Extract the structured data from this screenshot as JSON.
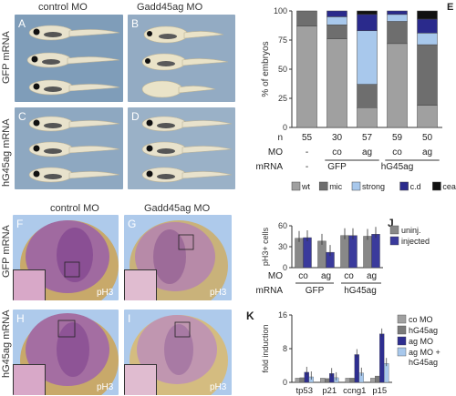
{
  "panel_letters": {
    "A": "A",
    "B": "B",
    "C": "C",
    "D": "D",
    "E": "E",
    "F": "F",
    "G": "G",
    "H": "H",
    "I": "I",
    "J": "J",
    "K": "K"
  },
  "top_images": {
    "col_left": "control MO",
    "col_right": "Gadd45ag MO",
    "row_top": "GFP mRNA",
    "row_bottom": "hG45ag mRNA"
  },
  "bottom_images": {
    "col_left": "control MO",
    "col_right": "Gadd45ag MO",
    "row_top": "GFP mRNA",
    "row_bottom": "hG45ag mRNA",
    "stain": "pH3"
  },
  "colors": {
    "wt": "#a0a0a0",
    "mic": "#6e6e6e",
    "strong": "#a8c8ec",
    "cd": "#2a2a8c",
    "ceac": "#111111",
    "uninj": "#888888",
    "injected": "#3a3a9c",
    "coMO": "#a0a0a0",
    "hG45ag": "#7a7a7a",
    "agMO": "#2e2e90",
    "agMO_hG45ag": "#a8c8ec"
  },
  "chart_data": [
    {
      "panel": "E",
      "type": "bar",
      "stacked": true,
      "ylabel": "% of embryos",
      "ylim": [
        0,
        100
      ],
      "yticks": [
        "0",
        "25",
        "50",
        "75",
        "100"
      ],
      "n_label": "n",
      "n": [
        "55",
        "30",
        "57",
        "59",
        "50"
      ],
      "mo_label": "MO",
      "mo": [
        "-",
        "co",
        "ag",
        "co",
        "ag"
      ],
      "mrna_label": "mRNA",
      "mrna_groups": [
        "-",
        "GFP",
        "hG45ag"
      ],
      "series": [
        {
          "name": "wt",
          "values": [
            87,
            76,
            17,
            72,
            19
          ]
        },
        {
          "name": "mic",
          "values": [
            13,
            12,
            20,
            19,
            52
          ]
        },
        {
          "name": "strong",
          "values": [
            0,
            7,
            46,
            6,
            10
          ]
        },
        {
          "name": "c.d",
          "values": [
            0,
            5,
            14,
            3,
            12
          ]
        },
        {
          "name": "ceac",
          "values": [
            0,
            0,
            3,
            0,
            7
          ]
        }
      ],
      "legend": [
        "wt",
        "mic",
        "strong",
        "c.d",
        "ceac"
      ]
    },
    {
      "panel": "J",
      "type": "bar",
      "ylabel": "pH3+ cells",
      "ylim": [
        0,
        60
      ],
      "yticks": [
        "0",
        "30",
        "60"
      ],
      "mo_label": "MO",
      "mo": [
        "co",
        "ag",
        "co",
        "ag"
      ],
      "mrna_label": "mRNA",
      "mrna_groups": [
        "GFP",
        "hG45ag"
      ],
      "series": [
        {
          "name": "uninj.",
          "values": [
            42,
            38,
            46,
            45
          ]
        },
        {
          "name": "injected",
          "values": [
            43,
            22,
            46,
            48
          ]
        }
      ]
    },
    {
      "panel": "K",
      "type": "bar",
      "ylabel": "fold induction",
      "ylim": [
        0,
        16
      ],
      "yticks": [
        "0",
        "8",
        "16"
      ],
      "categories": [
        "tp53",
        "p21",
        "ccng1",
        "p15"
      ],
      "series": [
        {
          "name": "co MO",
          "values": [
            1,
            1,
            1,
            1
          ]
        },
        {
          "name": "hG45ag",
          "values": [
            1.1,
            0.9,
            1.0,
            1.5
          ]
        },
        {
          "name": "ag MO",
          "values": [
            2.4,
            2.1,
            6.6,
            11.5
          ]
        },
        {
          "name": "ag MO + hG45ag",
          "values": [
            1.3,
            1.1,
            2.2,
            4.5
          ]
        }
      ]
    }
  ]
}
